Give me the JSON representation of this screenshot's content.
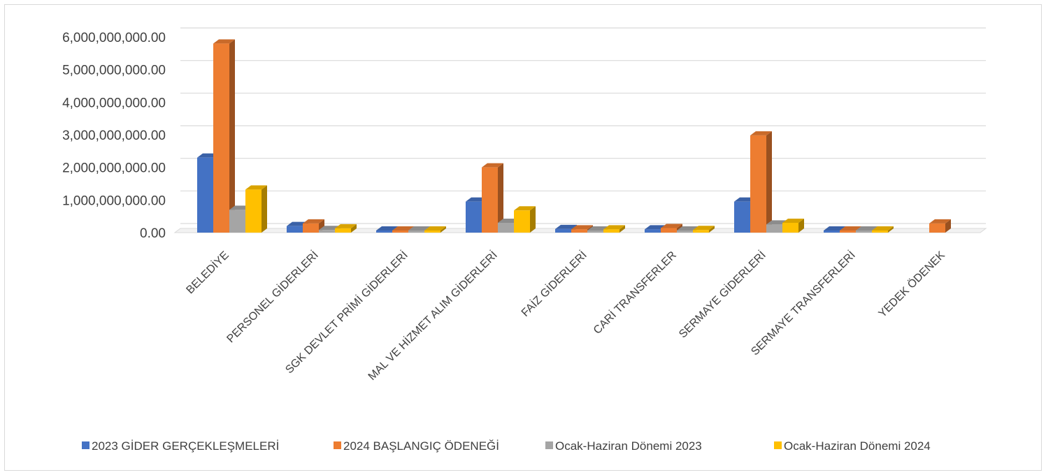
{
  "chart_data": {
    "type": "bar",
    "style": "3d-clustered-column",
    "categories": [
      "BELEDİYE",
      "PERSONEL GİDERLERİ",
      "SGK DEVLET PRİMİ GİDERLERİ",
      "MAL VE HİZMET ALIM GİDERLERİ",
      "FAİZ GİDERLERİ",
      "CARİ TRANSFERLER",
      "SERMAYE GİDERLERİ",
      "SERMAYE TRANSFERLERİ",
      "YEDEK ÖDENEK"
    ],
    "series": [
      {
        "name": "2023 GİDER GERÇEKLEŞMELERİ",
        "color": "#4472C4",
        "values": [
          2300000000,
          200000000,
          30000000,
          950000000,
          110000000,
          100000000,
          950000000,
          10000000,
          0
        ]
      },
      {
        "name": "2024 BAŞLANGIÇ ÖDENEĞİ",
        "color": "#ED7D31",
        "values": [
          5800000000,
          280000000,
          60000000,
          2000000000,
          100000000,
          140000000,
          2980000000,
          40000000,
          280000000
        ]
      },
      {
        "name": "Ocak-Haziran Dönemi 2023",
        "color": "#A5A5A5",
        "values": [
          700000000,
          80000000,
          15000000,
          300000000,
          30000000,
          50000000,
          250000000,
          5000000,
          0
        ]
      },
      {
        "name": "Ocak-Haziran Dönemi 2024",
        "color": "#FFC000",
        "values": [
          1320000000,
          130000000,
          30000000,
          680000000,
          100000000,
          80000000,
          300000000,
          15000000,
          0
        ]
      }
    ],
    "ylim": [
      0,
      6000000000
    ],
    "yticks": [
      0,
      1000000000,
      2000000000,
      3000000000,
      4000000000,
      5000000000,
      6000000000
    ],
    "ytick_labels": [
      "0.00",
      "1,000,000,000.00",
      "2,000,000,000.00",
      "3,000,000,000.00",
      "4,000,000,000.00",
      "5,000,000,000.00",
      "6,000,000,000.00"
    ],
    "grid": true,
    "legend_position": "bottom"
  }
}
